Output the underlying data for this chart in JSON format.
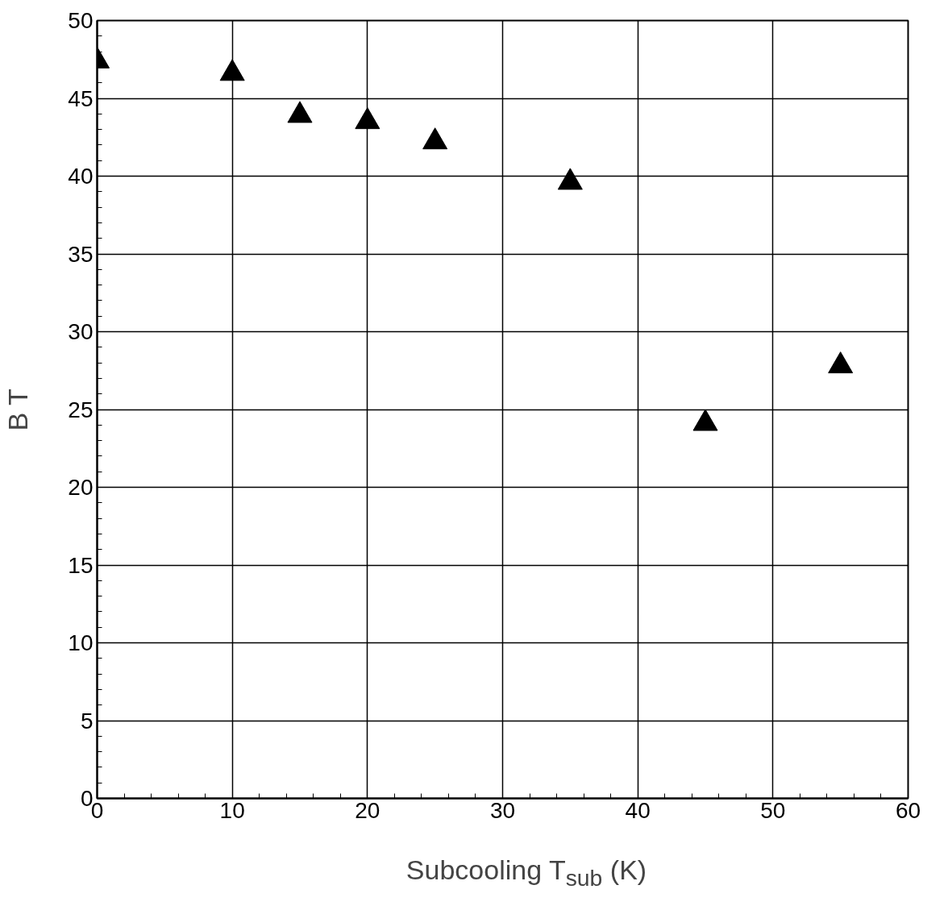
{
  "chart_data": {
    "type": "scatter",
    "xlabel": "Subcooling T$_{sub}$ (K)",
    "ylabel": "B T",
    "x": [
      0,
      10,
      15,
      20,
      25,
      35,
      45,
      55
    ],
    "series": [
      {
        "color": "#000000",
        "values": [
          47.4,
          46.6,
          43.9,
          43.5,
          42.2,
          39.6,
          24.1,
          27.8
        ]
      }
    ],
    "xlim": [
      0,
      60
    ],
    "xticks": [
      0,
      10,
      20,
      30,
      40,
      50,
      60
    ],
    "ylim": [
      0,
      50
    ],
    "yticks": [
      0,
      5,
      10,
      15,
      20,
      25,
      30,
      35,
      40,
      45,
      50
    ],
    "grid": true,
    "marker": "triangle"
  }
}
